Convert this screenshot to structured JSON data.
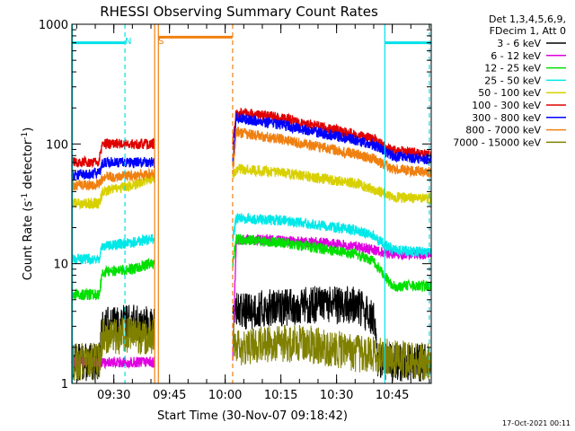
{
  "chart_data": {
    "type": "line",
    "title": "RHESSI Observing Summary Count Rates",
    "xlabel": "Start Time (30-Nov-07 09:18:42)",
    "ylabel": "Count Rate (s⁻¹ detector⁻¹)",
    "ylabel_parts": {
      "base": "Count Rate (s",
      "exp1": "-1",
      "mid": " detector",
      "exp2": "-1",
      "end": ")"
    },
    "footer": "17-Oct-2021 00:11",
    "y_scale": "log",
    "xlim": [
      "09:18:42",
      "10:55:30"
    ],
    "ylim": [
      1,
      1000
    ],
    "x_ticks": [
      "09:30",
      "09:45",
      "10:00",
      "10:15",
      "10:30",
      "10:45"
    ],
    "y_ticks": [
      {
        "value": 1,
        "label": "1"
      },
      {
        "value": 10,
        "label": "10"
      },
      {
        "value": 100,
        "label": "100"
      },
      {
        "value": 1000,
        "label": "1000"
      }
    ],
    "legend": {
      "position": "right",
      "header": [
        "Det 1,3,4,5,6,9,",
        "FDecim 1, Att 0"
      ]
    },
    "annotations": [
      {
        "text": "N",
        "x": "09:32",
        "color": "#00e0e8"
      },
      {
        "text": "S",
        "x": "09:41",
        "color": "#f08010"
      }
    ],
    "night_intervals": [
      {
        "start": "09:18:42",
        "end": "09:33",
        "level": 700
      },
      {
        "start": "10:43",
        "end": "10:55:30",
        "level": 700
      }
    ],
    "saa_intervals": [
      {
        "start": "09:42",
        "end": "10:02",
        "level": 780
      }
    ],
    "vertical_markers": [
      {
        "x": "09:18:50",
        "color": "#00e0e8",
        "style": "solid"
      },
      {
        "x": "09:33",
        "color": "#00e0e8",
        "style": "dashed"
      },
      {
        "x": "09:41",
        "color": "#f08010",
        "style": "solid"
      },
      {
        "x": "09:42",
        "color": "#f08010",
        "style": "solid"
      },
      {
        "x": "10:02",
        "color": "#f08010",
        "style": "dashed"
      },
      {
        "x": "10:43",
        "color": "#00e0e8",
        "style": "solid"
      },
      {
        "x": "10:55",
        "color": "#00e0e8",
        "style": "dashed"
      }
    ],
    "gap": {
      "start": "09:41",
      "end": "10:02"
    },
    "series": [
      {
        "name": "3 - 6 keV",
        "color": "#000000",
        "x": [
          "09:18:42",
          "09:26",
          "09:27",
          "09:35",
          "09:40",
          "10:02",
          "10:05",
          "10:20",
          "10:35",
          "10:40",
          "10:41",
          "10:55"
        ],
        "y": [
          1.5,
          1.5,
          3.0,
          3.2,
          3.0,
          4.0,
          4.0,
          4.5,
          4.5,
          3.5,
          1.5,
          1.5
        ]
      },
      {
        "name": "6 - 12 keV",
        "color": "#e000e0",
        "x": [
          "09:18:42",
          "09:33",
          "09:40",
          "10:02",
          "10:03",
          "10:15",
          "10:25",
          "10:35",
          "10:40",
          "10:45",
          "10:55"
        ],
        "y": [
          1.5,
          1.5,
          1.5,
          1.5,
          16,
          15.5,
          15,
          14,
          13,
          12,
          12
        ]
      },
      {
        "name": "12 - 25 keV",
        "color": "#00e000",
        "x": [
          "09:18:42",
          "09:26",
          "09:27",
          "09:35",
          "09:40",
          "10:02",
          "10:03",
          "10:15",
          "10:25",
          "10:35",
          "10:40",
          "10:45",
          "10:55"
        ],
        "y": [
          5.5,
          5.5,
          8.5,
          9.0,
          10,
          10,
          16,
          15,
          13.5,
          12,
          10.5,
          6.5,
          6.5
        ]
      },
      {
        "name": "25 - 50 keV",
        "color": "#00e8e8",
        "x": [
          "09:18:42",
          "09:26",
          "09:27",
          "09:35",
          "09:40",
          "10:02",
          "10:03",
          "10:15",
          "10:25",
          "10:35",
          "10:40",
          "10:45",
          "10:55"
        ],
        "y": [
          11,
          11,
          14,
          15,
          16,
          16,
          24,
          23,
          21,
          19,
          17,
          13,
          12.5
        ]
      },
      {
        "name": "50 - 100 keV",
        "color": "#d8d000",
        "x": [
          "09:18:42",
          "09:26",
          "09:27",
          "09:35",
          "09:40",
          "10:02",
          "10:03",
          "10:15",
          "10:25",
          "10:35",
          "10:40",
          "10:45",
          "10:55"
        ],
        "y": [
          32,
          32,
          40,
          45,
          52,
          52,
          62,
          58,
          52,
          47,
          42,
          36,
          35
        ]
      },
      {
        "name": "100 - 300 keV",
        "color": "#e00000",
        "x": [
          "09:18:42",
          "09:26",
          "09:27",
          "09:40",
          "10:02",
          "10:03",
          "10:15",
          "10:25",
          "10:35",
          "10:40",
          "10:45",
          "10:55"
        ],
        "y": [
          70,
          72,
          100,
          100,
          100,
          185,
          165,
          140,
          120,
          110,
          88,
          82
        ]
      },
      {
        "name": "300 - 800 keV",
        "color": "#0000ff",
        "x": [
          "09:18:42",
          "09:26",
          "09:27",
          "09:40",
          "10:02",
          "10:03",
          "10:15",
          "10:25",
          "10:35",
          "10:40",
          "10:45",
          "10:55"
        ],
        "y": [
          55,
          57,
          70,
          70,
          70,
          165,
          145,
          125,
          108,
          98,
          80,
          74
        ]
      },
      {
        "name": "800 - 7000 keV",
        "color": "#f08010",
        "x": [
          "09:18:42",
          "09:26",
          "09:27",
          "09:40",
          "10:02",
          "10:03",
          "10:15",
          "10:25",
          "10:35",
          "10:40",
          "10:45",
          "10:55"
        ],
        "y": [
          45,
          46,
          52,
          56,
          56,
          125,
          110,
          95,
          82,
          75,
          62,
          58
        ]
      },
      {
        "name": "7000 - 15000 keV",
        "color": "#808000",
        "x": [
          "09:18:42",
          "09:26",
          "09:27",
          "09:40",
          "10:02",
          "10:03",
          "10:20",
          "10:35",
          "10:55"
        ],
        "y": [
          1.5,
          1.5,
          2.5,
          2.5,
          2.5,
          2.0,
          2.2,
          1.8,
          1.5
        ]
      }
    ]
  }
}
